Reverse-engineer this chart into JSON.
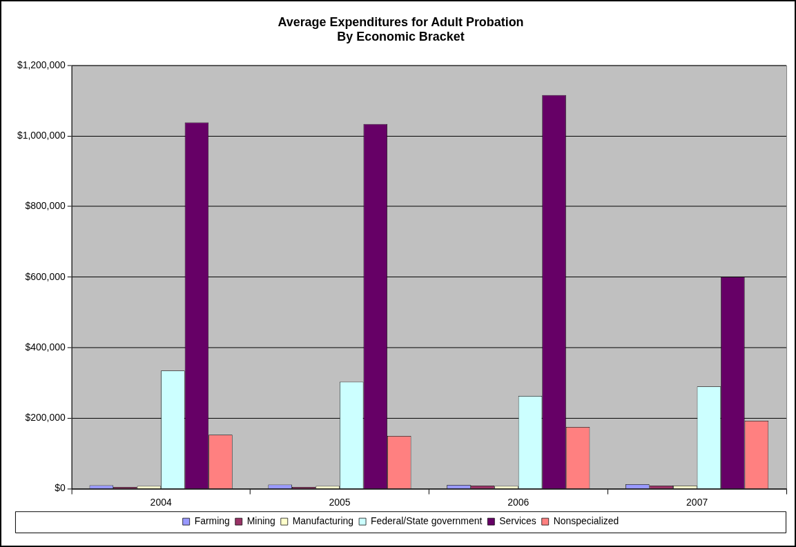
{
  "chart_data": {
    "type": "bar",
    "title": "Average Expenditures for Adult Probation\nBy Economic Bracket",
    "categories": [
      "2004",
      "2005",
      "2006",
      "2007"
    ],
    "series": [
      {
        "name": "Farming",
        "color": "#9999ff",
        "values": [
          10000,
          12000,
          11000,
          13000
        ]
      },
      {
        "name": "Mining",
        "color": "#993366",
        "values": [
          5000,
          5000,
          9000,
          9000
        ]
      },
      {
        "name": "Manufacturing",
        "color": "#ffffcc",
        "values": [
          8000,
          8000,
          8000,
          9000
        ]
      },
      {
        "name": "Federal/State government",
        "color": "#ccffff",
        "values": [
          335000,
          303000,
          263000,
          290000
        ]
      },
      {
        "name": "Services",
        "color": "#660066",
        "values": [
          1038000,
          1034000,
          1116000,
          601000
        ]
      },
      {
        "name": "Nonspecialized",
        "color": "#ff8080",
        "values": [
          153000,
          150000,
          175000,
          193000
        ]
      }
    ],
    "ylim": [
      0,
      1200000
    ],
    "yticks": [
      {
        "value": 0,
        "label": "$0"
      },
      {
        "value": 200000,
        "label": "$200,000"
      },
      {
        "value": 400000,
        "label": "$400,000"
      },
      {
        "value": 600000,
        "label": "$600,000"
      },
      {
        "value": 800000,
        "label": "$800,000"
      },
      {
        "value": 1000000,
        "label": "$1,000,000"
      },
      {
        "value": 1200000,
        "label": "$1,200,000"
      }
    ],
    "grid": "y",
    "legend": "bottom"
  }
}
